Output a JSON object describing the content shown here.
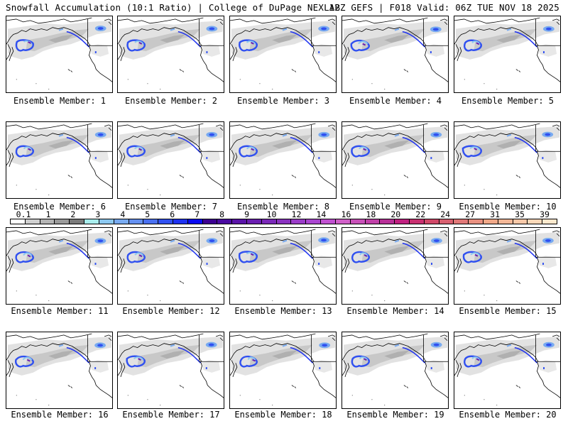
{
  "header": {
    "title": "Snowfall Accumulation (10:1 Ratio) | College of DuPage NEXLAB",
    "run_info": "12Z GEFS | F018 Valid: 06Z TUE NOV 18 2025"
  },
  "panel_label_prefix": "Ensemble Member:",
  "panels": [
    {
      "label": "Ensemble Member: 1",
      "member": 1
    },
    {
      "label": "Ensemble Member: 2",
      "member": 2
    },
    {
      "label": "Ensemble Member: 3",
      "member": 3
    },
    {
      "label": "Ensemble Member: 4",
      "member": 4
    },
    {
      "label": "Ensemble Member: 5",
      "member": 5
    },
    {
      "label": "Ensemble Member: 6",
      "member": 6
    },
    {
      "label": "Ensemble Member: 7",
      "member": 7
    },
    {
      "label": "Ensemble Member: 8",
      "member": 8
    },
    {
      "label": "Ensemble Member: 9",
      "member": 9
    },
    {
      "label": "Ensemble Member: 10",
      "member": 10
    },
    {
      "label": "Ensemble Member: 11",
      "member": 11
    },
    {
      "label": "Ensemble Member: 12",
      "member": 12
    },
    {
      "label": "Ensemble Member: 13",
      "member": 13
    },
    {
      "label": "Ensemble Member: 14",
      "member": 14
    },
    {
      "label": "Ensemble Member: 15",
      "member": 15
    },
    {
      "label": "Ensemble Member: 16",
      "member": 16
    },
    {
      "label": "Ensemble Member: 17",
      "member": 17
    },
    {
      "label": "Ensemble Member: 18",
      "member": 18
    },
    {
      "label": "Ensemble Member: 19",
      "member": 19
    },
    {
      "label": "Ensemble Member: 20",
      "member": 20
    }
  ],
  "colorbar": {
    "tick_labels": [
      "0.1",
      "1",
      "2",
      "3",
      "4",
      "5",
      "6",
      "7",
      "8",
      "9",
      "10",
      "12",
      "14",
      "16",
      "18",
      "20",
      "22",
      "24",
      "27",
      "31",
      "35",
      "39"
    ],
    "colors": [
      "#ffffff",
      "#cfcfcf",
      "#b4b4b4",
      "#9a9a9a",
      "#7a7a7a",
      "#a8ecec",
      "#8cc8f0",
      "#78aaf0",
      "#6490f0",
      "#4a70f0",
      "#3050f0",
      "#1e32f0",
      "#0a0af0",
      "#3c0090",
      "#4a0aa0",
      "#5a14a8",
      "#6a1eb0",
      "#7a28b8",
      "#8a32c0",
      "#9a3cc8",
      "#aa46d0",
      "#c050d0",
      "#d060c8",
      "#c850b8",
      "#c040a8",
      "#b83098",
      "#c02080",
      "#c83070",
      "#d04868",
      "#d86070",
      "#e07878",
      "#e89080",
      "#f0a888",
      "#f4b898",
      "#f8c8a8",
      "#fcd8b8",
      "#fde8cc"
    ]
  }
}
